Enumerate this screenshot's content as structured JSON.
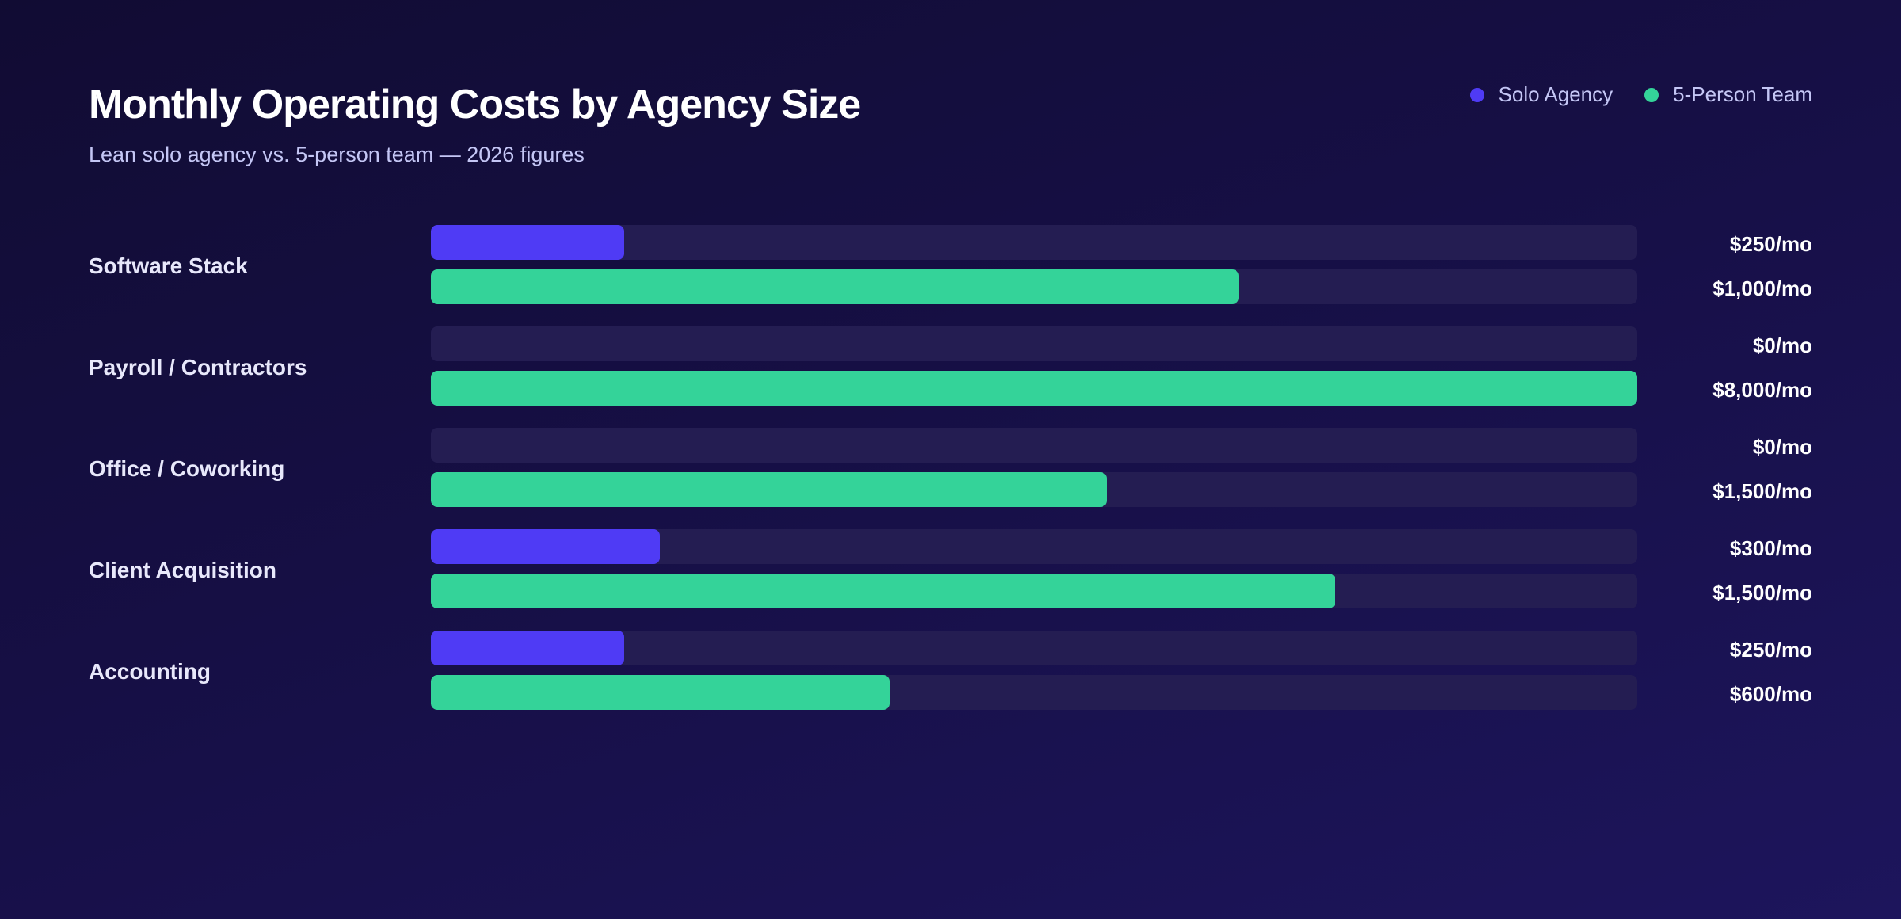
{
  "chart_data": {
    "type": "bar",
    "orientation": "horizontal",
    "title": "Monthly Operating Costs by Agency Size",
    "subtitle": "Lean solo agency vs. 5-person team — 2026 figures",
    "legend_placement": "top-right",
    "grid": false,
    "categories": [
      "Software Stack",
      "Payroll / Contractors",
      "Office / Coworking",
      "Client Acquisition",
      "Accounting"
    ],
    "series": [
      {
        "name": "Solo Agency",
        "color": "#4f3bf5",
        "values": [
          250,
          0,
          0,
          300,
          250
        ],
        "labels": [
          "$250/mo",
          "$0/mo",
          "$0/mo",
          "$300/mo",
          "$250/mo"
        ],
        "fill_fraction": [
          0.16,
          0,
          0,
          0.19,
          0.16
        ]
      },
      {
        "name": "5-Person Team",
        "color": "#34d399",
        "values": [
          1000,
          8000,
          1500,
          1500,
          600
        ],
        "labels": [
          "$1,000/mo",
          "$8,000/mo",
          "$1,500/mo",
          "$1,500/mo",
          "$600/mo"
        ],
        "fill_fraction": [
          0.67,
          1.0,
          0.56,
          0.75,
          0.38
        ]
      }
    ]
  }
}
